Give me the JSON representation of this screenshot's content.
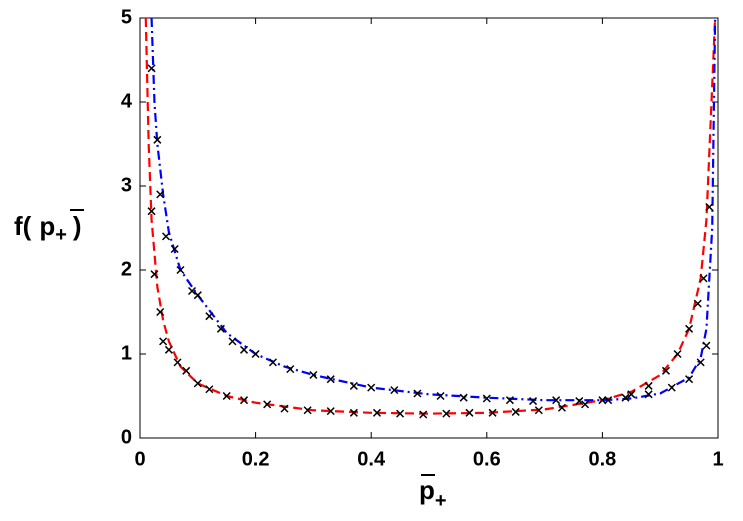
{
  "chart_data": {
    "type": "line",
    "ylabel_parts": [
      "f(",
      "p",
      "+",
      ")"
    ],
    "xlabel_parts": [
      "p",
      "+"
    ],
    "xlim": [
      0,
      1
    ],
    "ylim": [
      0,
      5
    ],
    "xticks": [
      0,
      0.2,
      0.4,
      0.6,
      0.8,
      1
    ],
    "yticks": [
      0,
      1,
      2,
      3,
      4,
      5
    ],
    "series": [
      {
        "color": "#ff0000",
        "style": "dashed",
        "x": [
          0.01,
          0.015,
          0.02,
          0.03,
          0.04,
          0.05,
          0.07,
          0.1,
          0.15,
          0.2,
          0.3,
          0.4,
          0.5,
          0.6,
          0.7,
          0.8,
          0.85,
          0.9,
          0.93,
          0.95,
          0.97,
          0.98,
          0.99,
          0.995
        ],
        "values": [
          5,
          3.5,
          2.6,
          1.8,
          1.4,
          1.15,
          0.85,
          0.65,
          0.5,
          0.42,
          0.33,
          0.3,
          0.29,
          0.3,
          0.34,
          0.45,
          0.55,
          0.75,
          1.0,
          1.3,
          1.9,
          2.6,
          4.2,
          5
        ]
      },
      {
        "color": "#0000ff",
        "style": "dashdot",
        "x": [
          0.02,
          0.025,
          0.03,
          0.04,
          0.05,
          0.07,
          0.1,
          0.15,
          0.2,
          0.25,
          0.3,
          0.4,
          0.5,
          0.6,
          0.7,
          0.8,
          0.85,
          0.9,
          0.95,
          0.97,
          0.98,
          0.99,
          0.995
        ],
        "values": [
          5,
          4.0,
          3.5,
          2.9,
          2.45,
          2.0,
          1.7,
          1.25,
          1.0,
          0.85,
          0.75,
          0.6,
          0.52,
          0.48,
          0.45,
          0.45,
          0.47,
          0.53,
          0.72,
          0.95,
          1.3,
          2.5,
          5
        ]
      },
      {
        "color": "#000000",
        "style": "markers",
        "x": [
          0.02,
          0.03,
          0.035,
          0.045,
          0.06,
          0.07,
          0.09,
          0.1,
          0.12,
          0.14,
          0.16,
          0.18,
          0.2,
          0.23,
          0.26,
          0.3,
          0.33,
          0.37,
          0.4,
          0.44,
          0.48,
          0.52,
          0.56,
          0.6,
          0.64,
          0.68,
          0.72,
          0.76,
          0.8,
          0.84,
          0.88,
          0.92,
          0.95,
          0.97,
          0.98
        ],
        "values": [
          4.4,
          3.55,
          2.9,
          2.4,
          2.25,
          2.0,
          1.75,
          1.7,
          1.45,
          1.3,
          1.15,
          1.05,
          1.0,
          0.9,
          0.82,
          0.75,
          0.7,
          0.62,
          0.6,
          0.57,
          0.53,
          0.5,
          0.48,
          0.47,
          0.45,
          0.44,
          0.45,
          0.44,
          0.45,
          0.48,
          0.52,
          0.6,
          0.7,
          0.9,
          1.1
        ]
      },
      {
        "color": "#000000",
        "style": "markers",
        "x": [
          0.02,
          0.025,
          0.035,
          0.04,
          0.05,
          0.065,
          0.08,
          0.1,
          0.12,
          0.15,
          0.18,
          0.22,
          0.25,
          0.29,
          0.33,
          0.37,
          0.41,
          0.45,
          0.49,
          0.53,
          0.57,
          0.61,
          0.65,
          0.69,
          0.73,
          0.77,
          0.81,
          0.85,
          0.88,
          0.91,
          0.93,
          0.95,
          0.965,
          0.975,
          0.985
        ],
        "values": [
          2.7,
          1.95,
          1.5,
          1.15,
          1.05,
          0.9,
          0.8,
          0.65,
          0.58,
          0.5,
          0.45,
          0.4,
          0.35,
          0.33,
          0.32,
          0.3,
          0.3,
          0.29,
          0.28,
          0.29,
          0.3,
          0.3,
          0.31,
          0.33,
          0.36,
          0.4,
          0.45,
          0.52,
          0.62,
          0.8,
          1.0,
          1.3,
          1.6,
          1.9,
          2.75
        ]
      }
    ]
  }
}
